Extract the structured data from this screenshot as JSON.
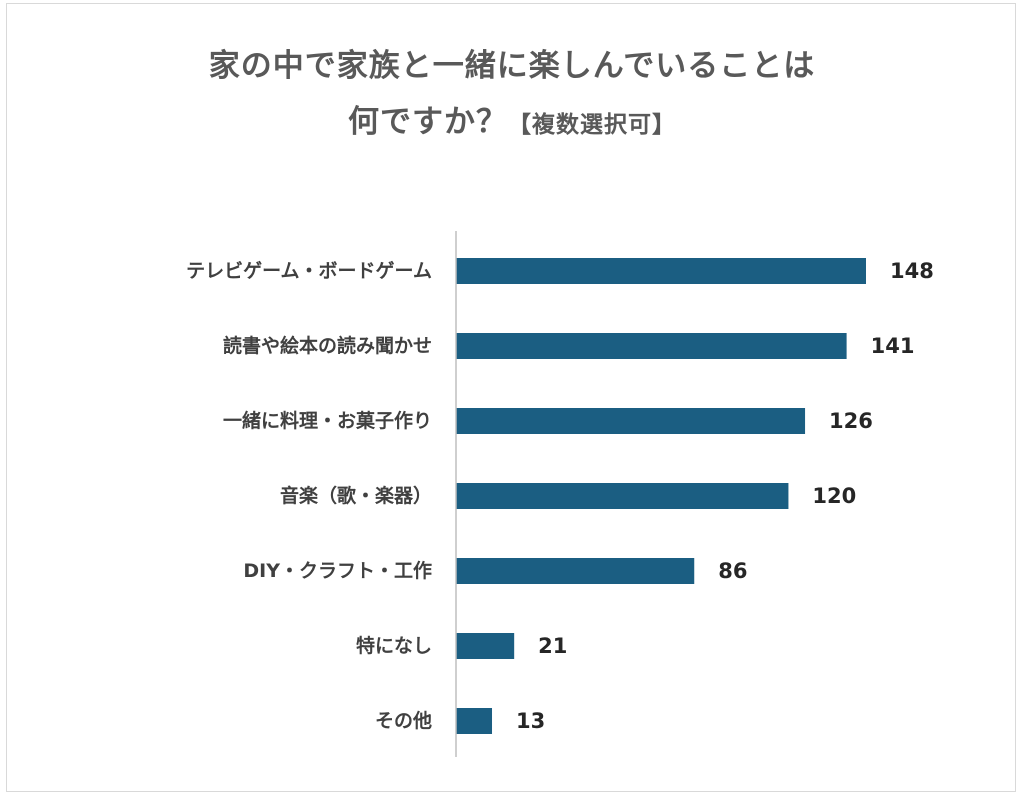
{
  "title_line1": "家の中で家族と一緒に楽しんでいることは",
  "title_line2": "何ですか？",
  "title_note": "【複数選択可】",
  "colors": {
    "bar": "#1b5e82",
    "axis": "#bfbfbf",
    "text": "#595959"
  },
  "chart_data": {
    "type": "bar",
    "orientation": "horizontal",
    "title": "家の中で家族と一緒に楽しんでいることは何ですか？【複数選択可】",
    "categories": [
      "テレビゲーム・ボードゲーム",
      "読書や絵本の読み聞かせ",
      "一緒に料理・お菓子作り",
      "音楽（歌・楽器）",
      "DIY・クラフト・工作",
      "特になし",
      "その他"
    ],
    "values": [
      148,
      141,
      126,
      120,
      86,
      21,
      13
    ],
    "xlim": [
      0,
      150
    ],
    "grid": false,
    "legend": "none",
    "data_labels": true
  }
}
